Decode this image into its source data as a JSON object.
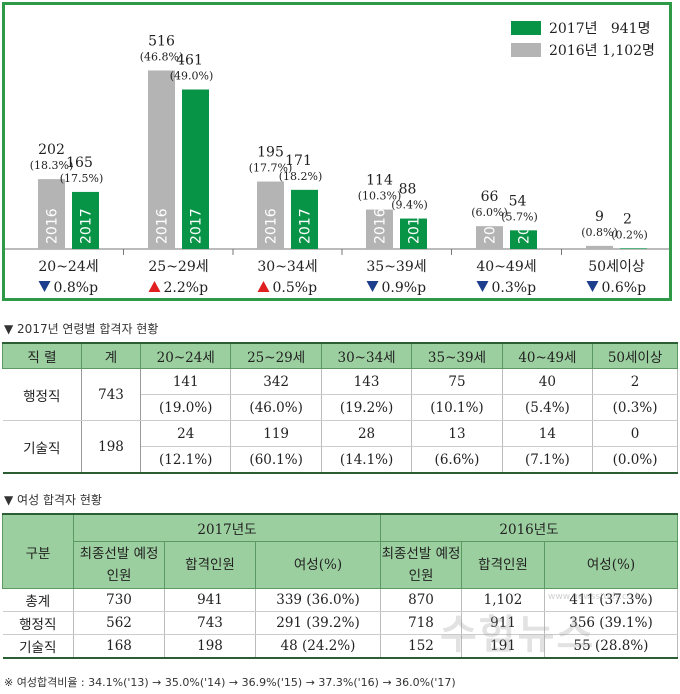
{
  "chart_data": {
    "type": "bar",
    "legend": [
      {
        "label": "2017년   941명",
        "color": "#079447"
      },
      {
        "label": "2016년 1,102명",
        "color": "#b4b4b4"
      }
    ],
    "legend_placement": "top-right",
    "categories": [
      "20~24세",
      "25~29세",
      "30~34세",
      "35~39세",
      "40~49세",
      "50세이상"
    ],
    "series": [
      {
        "name": "2016",
        "color": "#b4b4b4",
        "values": [
          202,
          516,
          195,
          114,
          66,
          9
        ],
        "pct": [
          "(18.3%)",
          "(46.8%)",
          "(17.7%)",
          "(10.3%)",
          "(6.0%)",
          "(0.8%)"
        ]
      },
      {
        "name": "2017",
        "color": "#079447",
        "values": [
          165,
          461,
          171,
          88,
          54,
          2
        ],
        "pct": [
          "(17.5%)",
          "(49.0%)",
          "(18.2%)",
          "(9.4%)",
          "(5.7%)",
          "(0.2%)"
        ]
      }
    ],
    "changes": [
      {
        "dir": "down",
        "text": "0.8%p"
      },
      {
        "dir": "up",
        "text": "2.2%p"
      },
      {
        "dir": "up",
        "text": "0.5%p"
      },
      {
        "dir": "down",
        "text": "0.9%p"
      },
      {
        "dir": "down",
        "text": "0.3%p"
      },
      {
        "dir": "down",
        "text": "0.6%p"
      }
    ],
    "up_color": "#e02020",
    "down_color": "#1d3e8c"
  },
  "table1": {
    "title": "▼ 2017년 연령별 합격자 현황",
    "headers": [
      "직 렬",
      "계",
      "20~24세",
      "25~29세",
      "30~34세",
      "35~39세",
      "40~49세",
      "50세이상"
    ],
    "rows": [
      {
        "name": "행정직",
        "total": "743",
        "counts": [
          "141",
          "342",
          "143",
          "75",
          "40",
          "2"
        ],
        "pcts": [
          "(19.0%)",
          "(46.0%)",
          "(19.2%)",
          "(10.1%)",
          "(5.4%)",
          "(0.3%)"
        ]
      },
      {
        "name": "기술직",
        "total": "198",
        "counts": [
          "24",
          "119",
          "28",
          "13",
          "14",
          "0"
        ],
        "pcts": [
          "(12.1%)",
          "(60.1%)",
          "(14.1%)",
          "(6.6%)",
          "(7.1%)",
          "(0.0%)"
        ]
      }
    ]
  },
  "table2": {
    "title": "▼ 여성 합격자 현황",
    "corner": "구분",
    "year2017": "2017년도",
    "year2016": "2016년도",
    "sub_headers": [
      "최종선발 예정인원",
      "합격인원",
      "여성(%)",
      "최종선발 예정인원",
      "합격인원",
      "여성(%)"
    ],
    "rows": [
      {
        "name": "총계",
        "cells": [
          "730",
          "941",
          "339 (36.0%)",
          "870",
          "1,102",
          "411 (37.3%)"
        ]
      },
      {
        "name": "행정직",
        "cells": [
          "562",
          "743",
          "291 (39.2%)",
          "718",
          "911",
          "356 (39.1%)"
        ]
      },
      {
        "name": "기술직",
        "cells": [
          "168",
          "198",
          "48 (24.2%)",
          "152",
          "191",
          "55 (28.8%)"
        ]
      }
    ]
  },
  "footnote": "※ 여성합격비율 : 34.1%('13) → 35.0%('14) → 36.9%('15) → 37.3%('16) → 36.0%('17)",
  "watermark": {
    "text": "수험뉴스",
    "url": "www.newsstudy.co.kr"
  }
}
